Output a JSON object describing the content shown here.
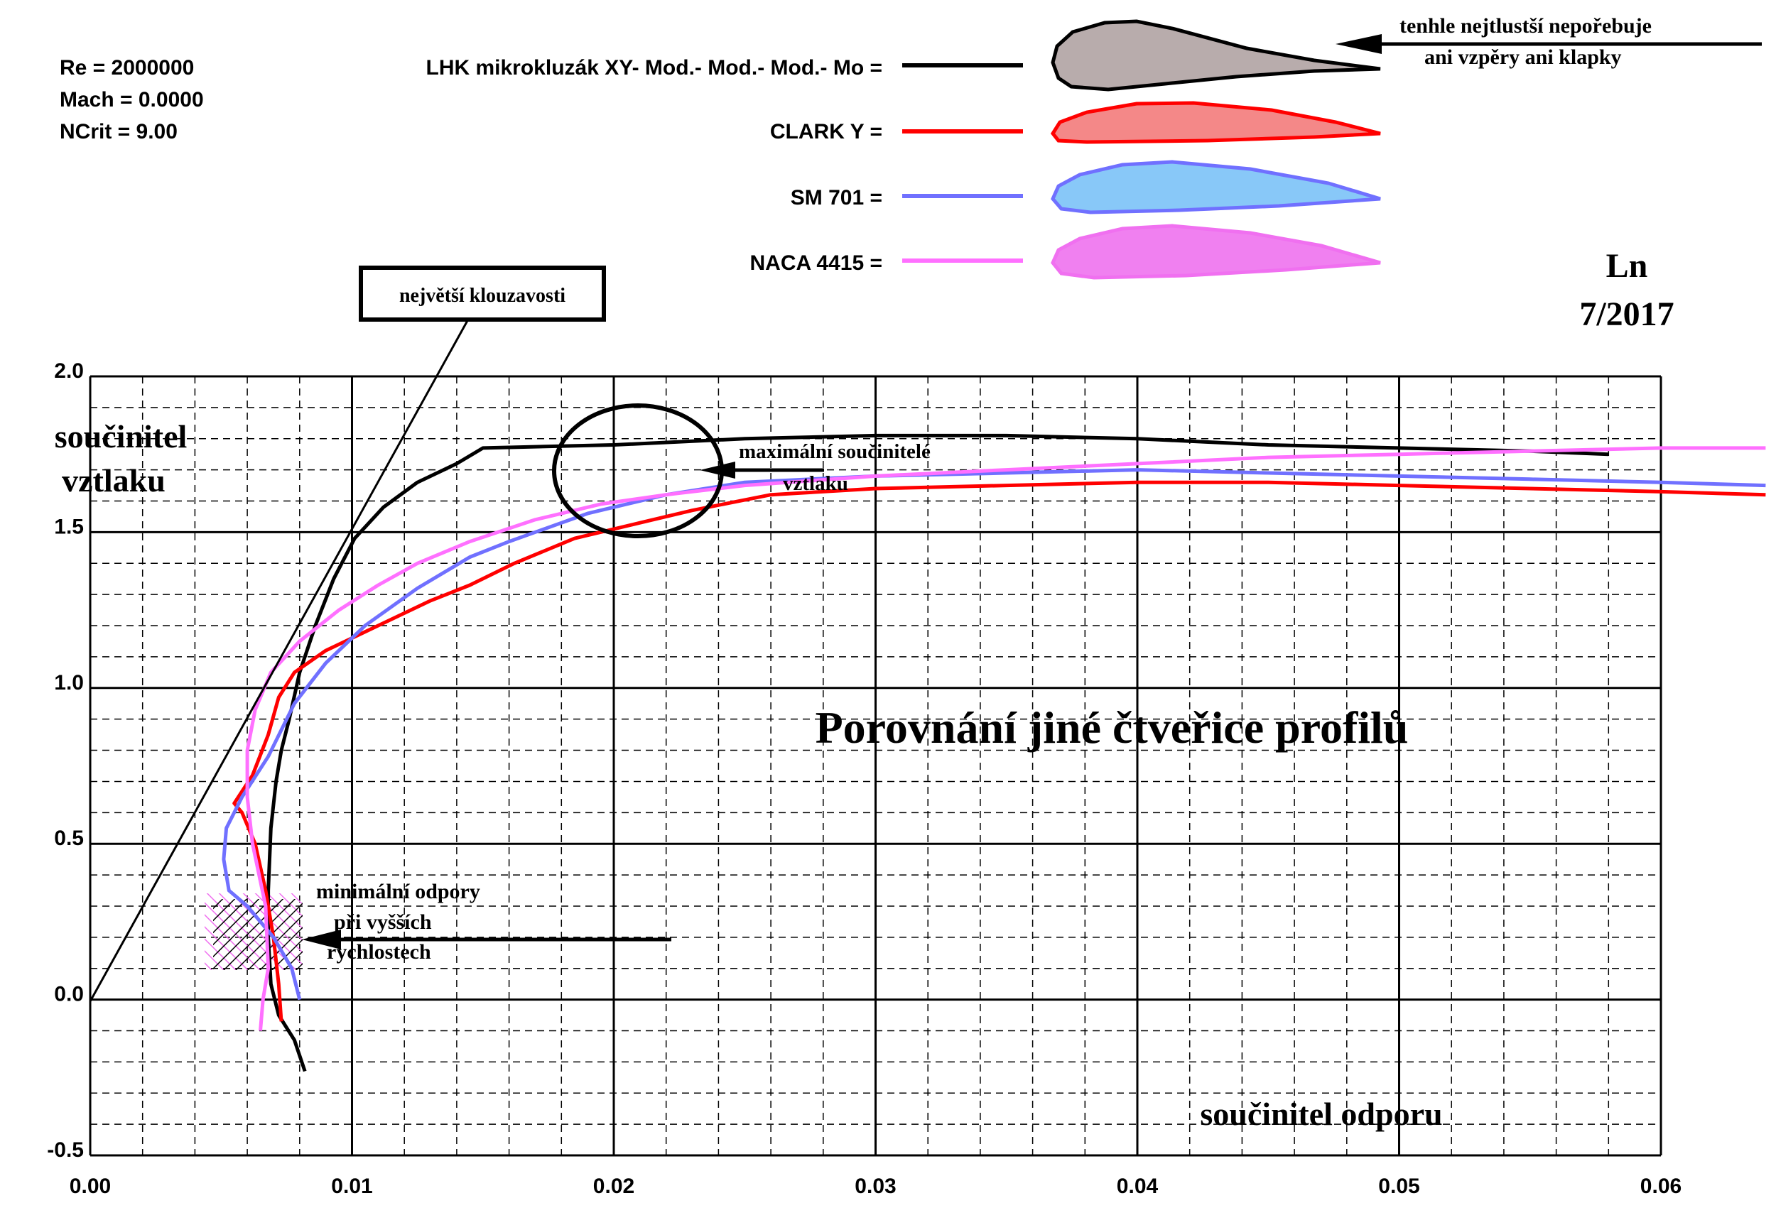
{
  "params": {
    "re": "Re = 2000000",
    "mach": "Mach = 0.0000",
    "ncrit": "NCrit = 9.00"
  },
  "watermark": {
    "author": "Ln",
    "date": "7/2017"
  },
  "main_title": "Porovnání jiné čtveřice profilů",
  "annotations": {
    "thickest_line1": "tenhle nejtlustší nepořebuje",
    "thickest_line2": "ani vzpěry ani klapky",
    "max_glide": "největší klouzavosti",
    "max_lift_line1": "maximální součinitelé",
    "max_lift_line2": "vztlaku",
    "min_drag_line1": "minimální odpory",
    "min_drag_line2": "při vyšších",
    "min_drag_line3": "rychlostech"
  },
  "colors": {
    "series1": "#000000",
    "series2": "#ff0000",
    "series3": "#7070ff",
    "series4": "#ff70ff",
    "fill1": "#b8acac",
    "fill2": "#f48888",
    "fill3": "#88c8f8",
    "fill4": "#f080f0"
  },
  "chart_data": {
    "type": "line",
    "xlabel": "součinitel odporu",
    "ylabel_line1": "součinitel",
    "ylabel_line2": "vztlaku",
    "xlim": [
      0,
      0.06
    ],
    "ylim": [
      -0.5,
      2.0
    ],
    "x_ticks": [
      "0.00",
      "0.01",
      "0.02",
      "0.03",
      "0.04",
      "0.05",
      "0.06"
    ],
    "y_ticks": [
      "-0.5",
      "0.0",
      "0.5",
      "1.0",
      "1.5",
      "2.0"
    ],
    "grid": true,
    "legend_position": "top",
    "series": [
      {
        "name": "LHK mikrokluzák XY- Mod.- Mod.- Mod.- Mo =",
        "color": "#000000",
        "points": [
          [
            0.0082,
            -0.23
          ],
          [
            0.0078,
            -0.13
          ],
          [
            0.0072,
            -0.05
          ],
          [
            0.0069,
            0.05
          ],
          [
            0.0068,
            0.2
          ],
          [
            0.0068,
            0.35
          ],
          [
            0.0069,
            0.55
          ],
          [
            0.0071,
            0.7
          ],
          [
            0.0073,
            0.8
          ],
          [
            0.0076,
            0.9
          ],
          [
            0.008,
            1.05
          ],
          [
            0.0086,
            1.2
          ],
          [
            0.0093,
            1.35
          ],
          [
            0.0101,
            1.48
          ],
          [
            0.0112,
            1.58
          ],
          [
            0.0125,
            1.66
          ],
          [
            0.014,
            1.72
          ],
          [
            0.015,
            1.77
          ],
          [
            0.02,
            1.78
          ],
          [
            0.025,
            1.8
          ],
          [
            0.03,
            1.81
          ],
          [
            0.035,
            1.81
          ],
          [
            0.04,
            1.8
          ],
          [
            0.045,
            1.78
          ],
          [
            0.05,
            1.77
          ],
          [
            0.055,
            1.76
          ],
          [
            0.058,
            1.75
          ]
        ]
      },
      {
        "name": "CLARK Y =",
        "color": "#ff0000",
        "points": [
          [
            0.0073,
            -0.07
          ],
          [
            0.0072,
            0.05
          ],
          [
            0.007,
            0.2
          ],
          [
            0.0067,
            0.35
          ],
          [
            0.0063,
            0.5
          ],
          [
            0.0058,
            0.6
          ],
          [
            0.0055,
            0.63
          ],
          [
            0.0062,
            0.72
          ],
          [
            0.0068,
            0.85
          ],
          [
            0.0072,
            0.97
          ],
          [
            0.0078,
            1.05
          ],
          [
            0.009,
            1.12
          ],
          [
            0.011,
            1.2
          ],
          [
            0.013,
            1.28
          ],
          [
            0.0145,
            1.33
          ],
          [
            0.0162,
            1.4
          ],
          [
            0.0185,
            1.48
          ],
          [
            0.021,
            1.53
          ],
          [
            0.023,
            1.57
          ],
          [
            0.026,
            1.62
          ],
          [
            0.03,
            1.64
          ],
          [
            0.035,
            1.65
          ],
          [
            0.04,
            1.66
          ],
          [
            0.045,
            1.66
          ],
          [
            0.05,
            1.65
          ],
          [
            0.055,
            1.64
          ],
          [
            0.06,
            1.63
          ],
          [
            0.064,
            1.62
          ]
        ]
      },
      {
        "name": "SM 701 =",
        "color": "#7070ff",
        "points": [
          [
            0.008,
            0.0
          ],
          [
            0.0077,
            0.1
          ],
          [
            0.007,
            0.2
          ],
          [
            0.006,
            0.3
          ],
          [
            0.0053,
            0.35
          ],
          [
            0.0051,
            0.45
          ],
          [
            0.0052,
            0.55
          ],
          [
            0.0058,
            0.65
          ],
          [
            0.0068,
            0.78
          ],
          [
            0.0078,
            0.95
          ],
          [
            0.009,
            1.08
          ],
          [
            0.0105,
            1.2
          ],
          [
            0.0125,
            1.32
          ],
          [
            0.0145,
            1.42
          ],
          [
            0.016,
            1.47
          ],
          [
            0.019,
            1.56
          ],
          [
            0.022,
            1.62
          ],
          [
            0.025,
            1.66
          ],
          [
            0.03,
            1.68
          ],
          [
            0.035,
            1.69
          ],
          [
            0.04,
            1.7
          ],
          [
            0.045,
            1.69
          ],
          [
            0.05,
            1.68
          ],
          [
            0.055,
            1.67
          ],
          [
            0.06,
            1.66
          ],
          [
            0.064,
            1.65
          ]
        ]
      },
      {
        "name": "NACA 4415 =",
        "color": "#ff70ff",
        "points": [
          [
            0.0065,
            -0.1
          ],
          [
            0.0066,
            0.0
          ],
          [
            0.0068,
            0.1
          ],
          [
            0.0067,
            0.3
          ],
          [
            0.0062,
            0.5
          ],
          [
            0.006,
            0.65
          ],
          [
            0.006,
            0.8
          ],
          [
            0.0063,
            0.93
          ],
          [
            0.0069,
            1.05
          ],
          [
            0.008,
            1.15
          ],
          [
            0.0095,
            1.25
          ],
          [
            0.011,
            1.33
          ],
          [
            0.0125,
            1.4
          ],
          [
            0.0145,
            1.47
          ],
          [
            0.017,
            1.54
          ],
          [
            0.0195,
            1.59
          ],
          [
            0.022,
            1.62
          ],
          [
            0.025,
            1.65
          ],
          [
            0.03,
            1.68
          ],
          [
            0.035,
            1.7
          ],
          [
            0.04,
            1.72
          ],
          [
            0.045,
            1.74
          ],
          [
            0.05,
            1.75
          ],
          [
            0.055,
            1.76
          ],
          [
            0.06,
            1.77
          ],
          [
            0.064,
            1.77
          ]
        ]
      }
    ]
  }
}
